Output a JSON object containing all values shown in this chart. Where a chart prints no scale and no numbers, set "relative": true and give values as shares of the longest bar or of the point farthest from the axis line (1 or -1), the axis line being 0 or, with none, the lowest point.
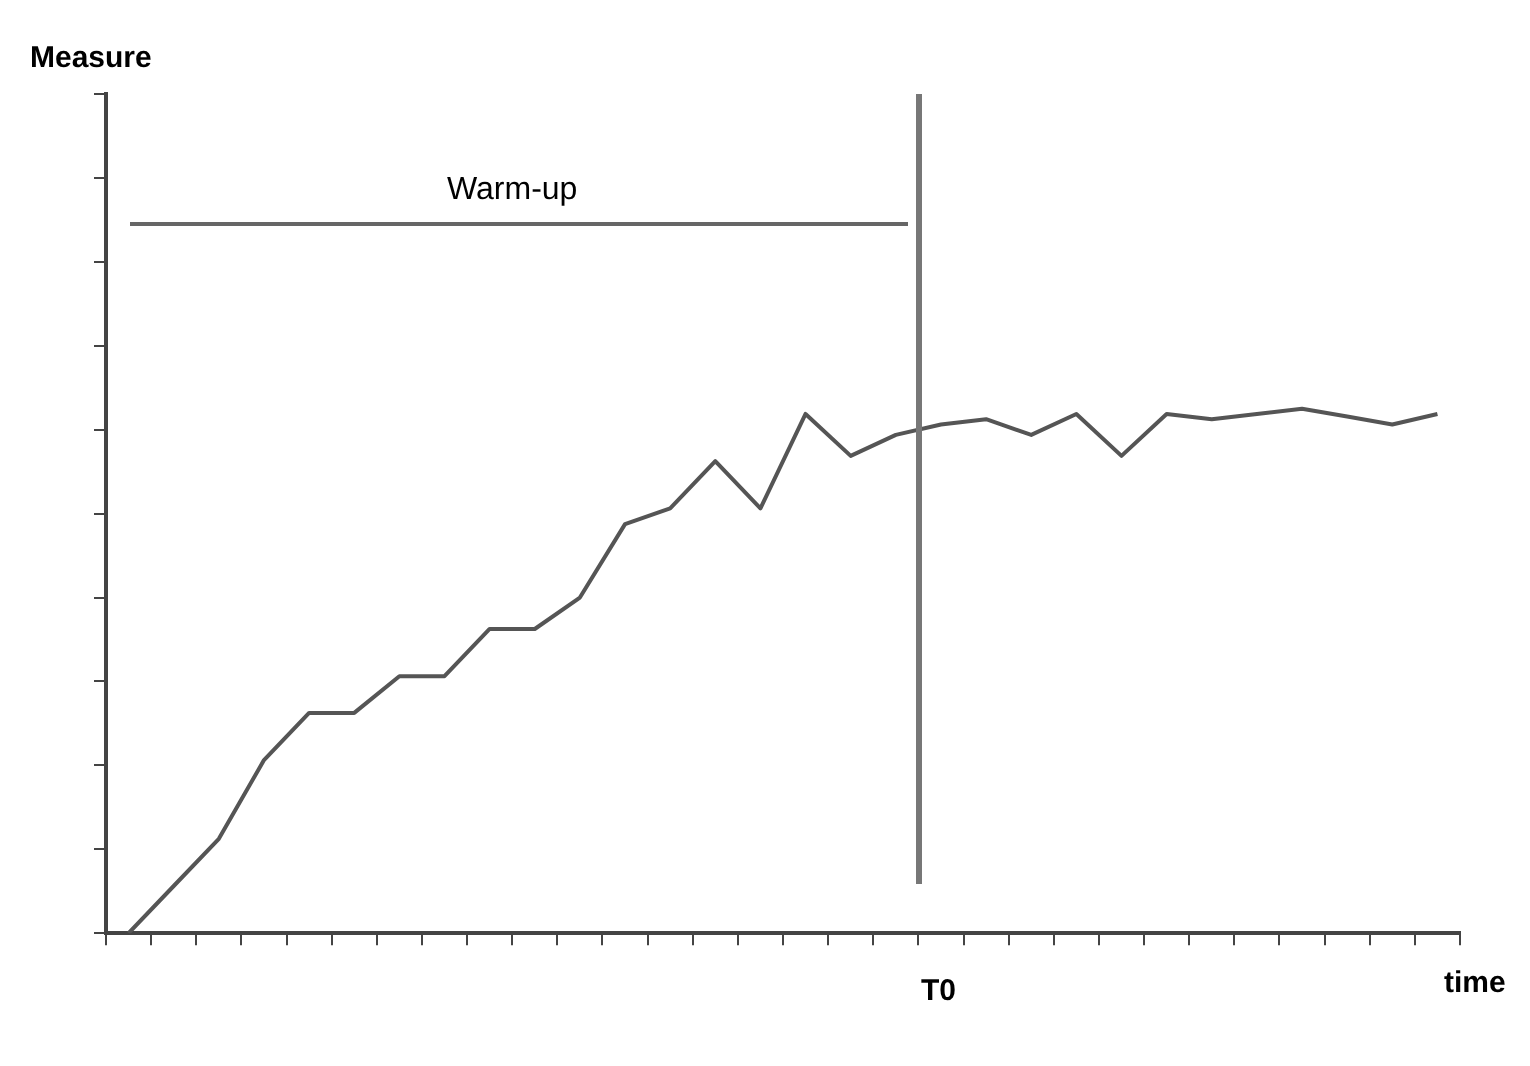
{
  "chart_data": {
    "type": "line",
    "xlabel": "time",
    "relative": true,
    "categories": [
      null,
      null,
      null,
      null,
      null,
      null,
      null,
      null,
      null,
      null,
      null,
      null,
      null,
      null,
      null,
      null,
      null,
      null,
      null,
      null,
      null,
      null,
      null,
      null,
      null,
      null,
      null,
      null,
      null,
      null
    ],
    "series": [
      {
        "color": "#555555",
        "values": [
          0,
          0.09,
          0.18,
          0.33,
          0.42,
          0.42,
          0.49,
          0.49,
          0.58,
          0.58,
          0.64,
          0.78,
          0.81,
          0.9,
          0.81,
          0.99,
          0.91,
          0.95,
          0.97,
          0.98,
          0.95,
          0.99,
          0.91,
          0.99,
          0.98,
          0.99,
          1,
          0.985,
          0.97,
          0.99
        ]
      }
    ],
    "annotations": [
      "Warm-up",
      "T0",
      "Measure"
    ],
    "grid": false,
    "legend": false,
    "marker": "none",
    "line_style": "solid"
  }
}
